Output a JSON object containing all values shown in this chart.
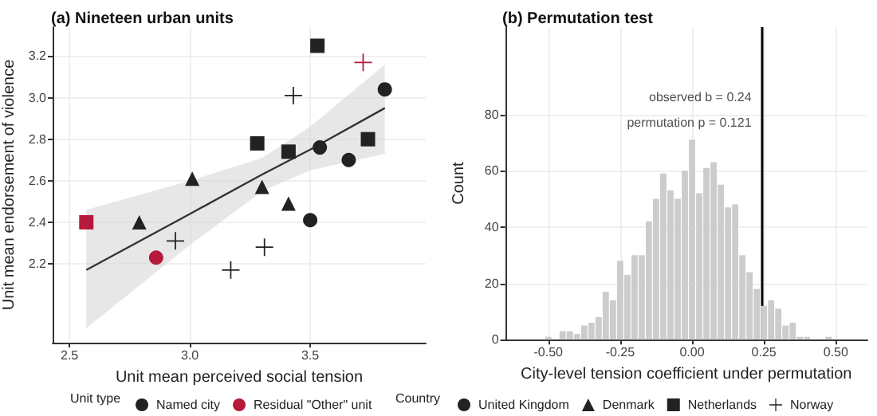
{
  "chart_data": [
    {
      "type": "scatter",
      "title": "(a) Nineteen urban units",
      "xlabel": "Unit mean perceived social tension",
      "ylabel": "Unit mean endorsement of violence",
      "legend_title": "Unit type",
      "annotations": [
        "Country"
      ],
      "legend": "bottom",
      "grid": true,
      "xlim": [
        2.43,
        3.98
      ],
      "xticks": [
        {
          "value": 2.5,
          "label": "2.5"
        },
        {
          "value": 3,
          "label": "3.0"
        },
        {
          "value": 3.5,
          "label": "3.5"
        }
      ],
      "ylim": [
        1.82,
        3.34
      ],
      "yticks": [
        {
          "value": 2.2,
          "label": "2.2"
        },
        {
          "value": 2.4,
          "label": "2.4"
        },
        {
          "value": 2.6,
          "label": "2.6"
        },
        {
          "value": 2.8,
          "label": "2.8"
        },
        {
          "value": 3,
          "label": "3.0"
        },
        {
          "value": 3.2,
          "label": "3.2"
        }
      ],
      "series": [
        {
          "name": "Named city",
          "color": "#222222",
          "marker": "circle"
        },
        {
          "name": "Residual \"Other\" unit",
          "color": "#b5193b",
          "marker": "circle"
        },
        {
          "name": "United Kingdom",
          "color": "#222222",
          "marker": "circle",
          "x": [
            3.81,
            3.54,
            3.66,
            3.5,
            2.86
          ],
          "values": [
            3.04,
            2.76,
            2.7,
            2.41,
            2.23
          ],
          "colors": [
            "#222222",
            "#222222",
            "#222222",
            "#222222",
            "#b5193b"
          ]
        },
        {
          "name": "Denmark",
          "color": "#222222",
          "marker": "triangle",
          "x": [
            2.79,
            3.01,
            3.3,
            3.41
          ],
          "values": [
            2.4,
            2.61,
            2.57,
            2.49
          ],
          "colors": [
            "#222222",
            "#222222",
            "#222222",
            "#222222"
          ]
        },
        {
          "name": "Netherlands",
          "color": "#222222",
          "marker": "square",
          "x": [
            3.53,
            3.28,
            3.41,
            3.74,
            2.57
          ],
          "values": [
            3.25,
            2.78,
            2.74,
            2.8,
            2.4
          ],
          "colors": [
            "#222222",
            "#222222",
            "#222222",
            "#222222",
            "#b5193b"
          ]
        },
        {
          "name": "Norway",
          "color": "#222222",
          "marker": "cross",
          "x": [
            3.43,
            2.94,
            3.31,
            3.17,
            3.72
          ],
          "values": [
            3.01,
            2.31,
            2.28,
            2.17,
            3.17
          ],
          "colors": [
            "#222222",
            "#222222",
            "#222222",
            "#222222",
            "#b5193b"
          ]
        },
        {
          "type": "line",
          "color": "#333333",
          "x": [
            2.57,
            3.0,
            3.3,
            3.5,
            3.81
          ],
          "values": [
            2.17,
            2.44,
            2.63,
            2.75,
            2.95
          ],
          "lower": [
            1.89,
            2.29,
            2.55,
            2.65,
            2.73
          ],
          "upper": [
            2.46,
            2.6,
            2.71,
            2.86,
            3.16
          ]
        }
      ]
    },
    {
      "type": "histogram",
      "title": "(b) Permutation test",
      "xlabel": "City-level tension coefficient under permutation",
      "ylabel": "Count",
      "color": "#cccccc",
      "grid": true,
      "bins": [
        -0.5125,
        -0.4875,
        -0.4625,
        -0.4375,
        -0.4125,
        -0.3875,
        -0.3625,
        -0.3375,
        -0.3125,
        -0.2875,
        -0.2625,
        -0.2375,
        -0.2125,
        -0.1875,
        -0.1625,
        -0.1375,
        -0.1125,
        -0.0875,
        -0.0625,
        -0.0375,
        -0.0125,
        0.0125,
        0.0375,
        0.0625,
        0.0875,
        0.1125,
        0.1375,
        0.1625,
        0.1875,
        0.2125,
        0.2375,
        0.2625,
        0.2875,
        0.3125,
        0.3375,
        0.3625,
        0.3875,
        0.4125,
        0.4375,
        0.4625,
        0.4875
      ],
      "values": [
        1,
        0,
        3,
        3,
        2,
        5,
        6,
        8,
        17,
        14,
        28,
        23,
        30,
        30,
        42,
        50,
        59,
        53,
        50,
        60,
        71,
        52,
        61,
        63,
        55,
        47,
        48,
        30,
        24,
        18,
        12,
        14,
        11,
        5,
        6,
        1,
        1,
        0,
        0,
        1
      ],
      "xlim": [
        -0.65,
        0.61
      ],
      "xticks": [
        {
          "value": -0.5,
          "label": "-0.50"
        },
        {
          "value": -0.25,
          "label": "-0.25"
        },
        {
          "value": 0,
          "label": "0.00"
        },
        {
          "value": 0.25,
          "label": "0.25"
        },
        {
          "value": 0.5,
          "label": "0.50"
        }
      ],
      "ylim": [
        0,
        111
      ],
      "yticks": [
        0,
        20,
        40,
        60,
        80
      ],
      "ref_lines": [
        {
          "axis": "x",
          "value": 0.24,
          "color": "#000000"
        }
      ],
      "annotations": [
        {
          "text": "observed b = 0.24",
          "x": 0.24,
          "y": 86
        },
        {
          "text": "permutation p = 0.121",
          "x": 0.24,
          "y": 77
        }
      ]
    }
  ]
}
